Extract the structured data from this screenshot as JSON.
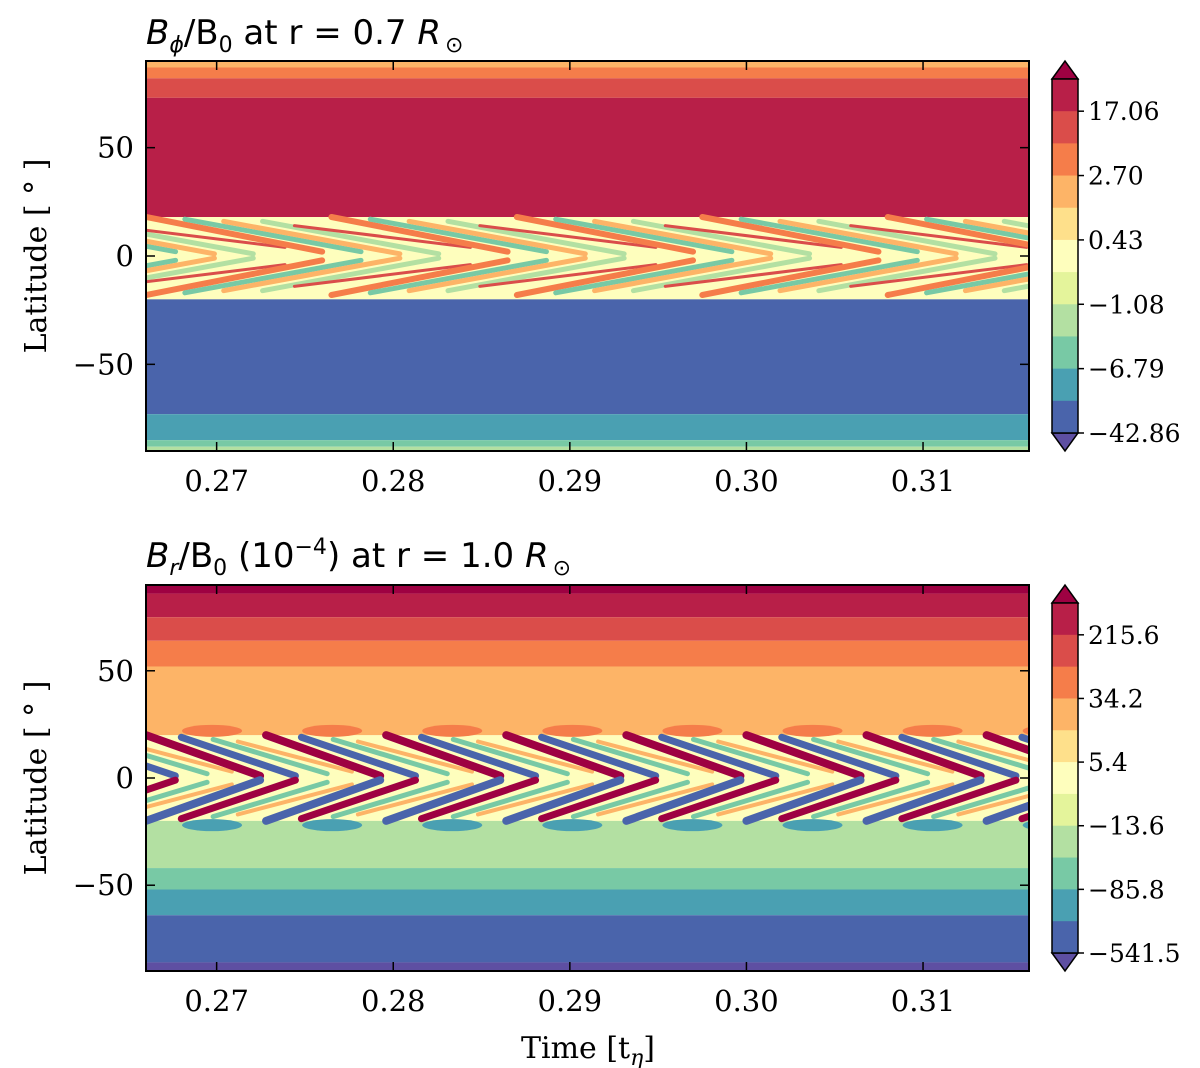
{
  "chart_data": [
    {
      "type": "heatmap",
      "title": {
        "main": "B",
        "sub1": "ϕ",
        "mid": "/B",
        "sub2": "0",
        "tail": " at r = 0.7 ",
        "unit": "R",
        "unit_sub": "⊙"
      },
      "xlabel": "",
      "ylabel": "Latitude [ ° ]",
      "xlim": [
        0.266,
        0.316
      ],
      "ylim": [
        -90,
        90
      ],
      "xticks": [
        0.27,
        0.28,
        0.29,
        0.3,
        0.31
      ],
      "xtick_labels": [
        "0.27",
        "0.28",
        "0.29",
        "0.30",
        "0.31"
      ],
      "yticks": [
        50,
        0,
        -50
      ],
      "ytick_labels": [
        "50",
        "0",
        "−50"
      ],
      "cycle_period": 0.0105,
      "colorbar": {
        "extend": "both",
        "level_colors": [
          "#5e4fa2",
          "#4a64ab",
          "#4aa0b2",
          "#78c9a5",
          "#b3e0a2",
          "#e4f49b",
          "#fefebd",
          "#fee08b",
          "#fdb467",
          "#f57d4a",
          "#da4d4a",
          "#b81f48",
          "#9e0142"
        ],
        "tick_labels": [
          "17.06",
          "2.70",
          "0.43",
          "−1.08",
          "−6.79",
          "−42.86"
        ]
      },
      "bands": [
        {
          "lat_from": 90,
          "lat_to": 87,
          "color": "#fdb467"
        },
        {
          "lat_from": 87,
          "lat_to": 82,
          "color": "#f57d4a"
        },
        {
          "lat_from": 82,
          "lat_to": 73,
          "color": "#da4d4a"
        },
        {
          "lat_from": 73,
          "lat_to": 18,
          "color": "#b81f48"
        },
        {
          "lat_from": -20,
          "lat_to": -73,
          "color": "#4a64ab"
        },
        {
          "lat_from": -73,
          "lat_to": -85,
          "color": "#4aa0b2"
        },
        {
          "lat_from": -85,
          "lat_to": -88,
          "color": "#78c9a5"
        },
        {
          "lat_from": -88,
          "lat_to": -90,
          "color": "#b3e0a2"
        }
      ]
    },
    {
      "type": "heatmap",
      "title": {
        "main": "B",
        "sub1": "r",
        "mid": "/B",
        "sub2": "0",
        "tail": " (10",
        "exp": "−4",
        "tail2": ") at r = 1.0 ",
        "unit": "R",
        "unit_sub": "⊙"
      },
      "xlabel": "Time [t",
      "xlabel_sub": "η",
      "xlabel_tail": "]",
      "ylabel": "Latitude [ ° ]",
      "xlim": [
        0.266,
        0.316
      ],
      "ylim": [
        -90,
        90
      ],
      "xticks": [
        0.27,
        0.28,
        0.29,
        0.3,
        0.31
      ],
      "xtick_labels": [
        "0.27",
        "0.28",
        "0.29",
        "0.30",
        "0.31"
      ],
      "yticks": [
        50,
        0,
        -50
      ],
      "ytick_labels": [
        "50",
        "0",
        "−50"
      ],
      "cycle_period": 0.0068,
      "colorbar": {
        "extend": "both",
        "level_colors": [
          "#5e4fa2",
          "#4a64ab",
          "#4aa0b2",
          "#78c9a5",
          "#b3e0a2",
          "#e4f49b",
          "#fefebd",
          "#fee08b",
          "#fdb467",
          "#f57d4a",
          "#da4d4a",
          "#b81f48",
          "#9e0142"
        ],
        "tick_labels": [
          "215.6",
          "34.2",
          "5.4",
          "−13.6",
          "−85.8",
          "−541.5"
        ]
      },
      "bands": [
        {
          "lat_from": 90,
          "lat_to": 86,
          "color": "#9e0142"
        },
        {
          "lat_from": 86,
          "lat_to": 75,
          "color": "#b81f48"
        },
        {
          "lat_from": 75,
          "lat_to": 64,
          "color": "#da4d4a"
        },
        {
          "lat_from": 64,
          "lat_to": 52,
          "color": "#f57d4a"
        },
        {
          "lat_from": 52,
          "lat_to": 20,
          "color": "#fdb467"
        },
        {
          "lat_from": -20,
          "lat_to": -42,
          "color": "#b3e0a2"
        },
        {
          "lat_from": -42,
          "lat_to": -52,
          "color": "#78c9a5"
        },
        {
          "lat_from": -52,
          "lat_to": -64,
          "color": "#4aa0b2"
        },
        {
          "lat_from": -64,
          "lat_to": -86,
          "color": "#4a64ab"
        },
        {
          "lat_from": -86,
          "lat_to": -90,
          "color": "#5e4fa2"
        }
      ]
    }
  ]
}
